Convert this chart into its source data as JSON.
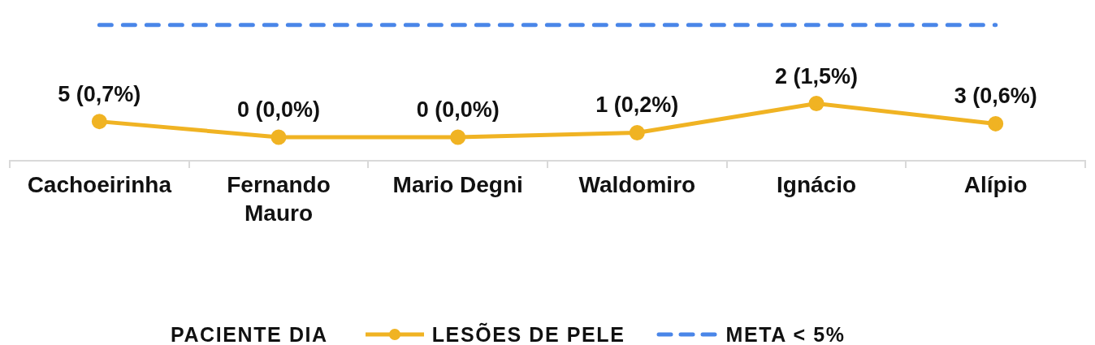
{
  "chart_data": {
    "type": "line",
    "legend_title": "PACIENTE DIA",
    "legend": "bottom",
    "tick_labels": "x",
    "categories": [
      "Cachoeirinha",
      "Fernando Mauro",
      "Mario Degni",
      "Waldomiro",
      "Ignácio",
      "Alípio"
    ],
    "series": [
      {
        "name": "LESÕES DE PELE",
        "color": "#f0b323",
        "marker": "circle",
        "line_style": "solid",
        "values": [
          0.7,
          0,
          0,
          0.2,
          1.5,
          0.6
        ],
        "value_labels": [
          "5 (0,7%)",
          "0 (0,0%)",
          "0 (0,0%)",
          "1 (0,2%)",
          "2 (1,5%)",
          "3 (0,6%)"
        ]
      },
      {
        "name": "META < 5%",
        "color": "#4a86e8",
        "marker": "none",
        "line_style": "dashed",
        "values": [
          5,
          5,
          5,
          5,
          5,
          5
        ]
      }
    ]
  }
}
